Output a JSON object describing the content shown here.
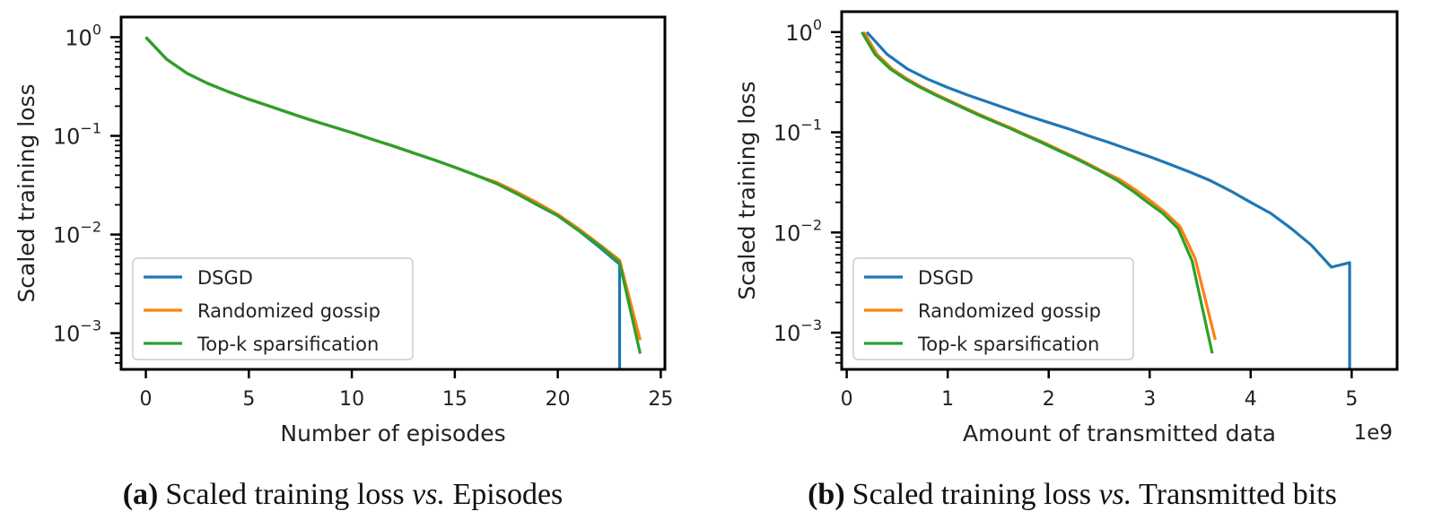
{
  "colors": {
    "dsgd": "#1f77b4",
    "randomized_gossip": "#ff7f0e",
    "topk": "#2ca02c"
  },
  "chart_data": [
    {
      "id": "a",
      "type": "line",
      "yscale": "log",
      "title": "",
      "xlabel": "Number of episodes",
      "ylabel": "Scaled training loss",
      "xlim": [
        -1.2,
        25.2
      ],
      "ylim": [
        0.00043,
        1.6
      ],
      "xticks": [
        0,
        5,
        10,
        15,
        20,
        25
      ],
      "xtick_labels": [
        "0",
        "5",
        "10",
        "15",
        "20",
        "25"
      ],
      "yticks": [
        1,
        0.1,
        0.01,
        0.001
      ],
      "ytick_labels": [
        {
          "base": "10",
          "exp": "0"
        },
        {
          "base": "10",
          "exp": "−1"
        },
        {
          "base": "10",
          "exp": "−2"
        },
        {
          "base": "10",
          "exp": "−3"
        }
      ],
      "legend": {
        "placement": "lower-left",
        "entries": [
          "DSGD",
          "Randomized gossip",
          "Top-k sparsification"
        ]
      },
      "caption": {
        "label": "(a)",
        "text_1": "Scaled training loss ",
        "vs": "vs.",
        "text_2": " Episodes"
      },
      "series": [
        {
          "name": "DSGD",
          "color_key": "dsgd",
          "x": [
            0,
            1,
            2,
            3,
            4,
            5,
            6,
            7,
            8,
            9,
            10,
            11,
            12,
            13,
            14,
            15,
            16,
            17,
            18,
            19,
            20,
            21,
            22,
            23,
            23
          ],
          "y": [
            1.0,
            0.6,
            0.43,
            0.34,
            0.28,
            0.235,
            0.2,
            0.17,
            0.145,
            0.125,
            0.108,
            0.092,
            0.079,
            0.067,
            0.057,
            0.048,
            0.04,
            0.033,
            0.026,
            0.02,
            0.0155,
            0.011,
            0.0075,
            0.005,
            0.0003
          ]
        },
        {
          "name": "Randomized gossip",
          "color_key": "randomized_gossip",
          "x": [
            0,
            1,
            2,
            3,
            4,
            5,
            6,
            7,
            8,
            9,
            10,
            11,
            12,
            13,
            14,
            15,
            16,
            17,
            18,
            19,
            20,
            21,
            22,
            23,
            24
          ],
          "y": [
            1.0,
            0.6,
            0.43,
            0.34,
            0.28,
            0.235,
            0.2,
            0.17,
            0.145,
            0.125,
            0.108,
            0.092,
            0.079,
            0.067,
            0.057,
            0.048,
            0.04,
            0.034,
            0.027,
            0.021,
            0.016,
            0.0115,
            0.008,
            0.0055,
            0.00085
          ]
        },
        {
          "name": "Top-k sparsification",
          "color_key": "topk",
          "x": [
            0,
            1,
            2,
            3,
            4,
            5,
            6,
            7,
            8,
            9,
            10,
            11,
            12,
            13,
            14,
            15,
            16,
            17,
            18,
            19,
            20,
            21,
            22,
            23,
            24
          ],
          "y": [
            1.0,
            0.6,
            0.43,
            0.34,
            0.28,
            0.235,
            0.2,
            0.17,
            0.145,
            0.125,
            0.108,
            0.092,
            0.079,
            0.067,
            0.057,
            0.048,
            0.04,
            0.033,
            0.026,
            0.02,
            0.0155,
            0.011,
            0.0078,
            0.0052,
            0.00062
          ]
        }
      ]
    },
    {
      "id": "b",
      "type": "line",
      "yscale": "log",
      "title": "",
      "xlabel": "Amount of transmitted data",
      "ylabel": "Scaled training loss",
      "offset_text": "1e9",
      "xlim": [
        -0.05,
        5.45
      ],
      "ylim": [
        0.00043,
        1.6
      ],
      "xticks": [
        0,
        1,
        2,
        3,
        4,
        5
      ],
      "xtick_labels": [
        "0",
        "1",
        "2",
        "3",
        "4",
        "5"
      ],
      "yticks": [
        1,
        0.1,
        0.01,
        0.001
      ],
      "ytick_labels": [
        {
          "base": "10",
          "exp": "0"
        },
        {
          "base": "10",
          "exp": "−1"
        },
        {
          "base": "10",
          "exp": "−2"
        },
        {
          "base": "10",
          "exp": "−3"
        }
      ],
      "legend": {
        "placement": "lower-left",
        "entries": [
          "DSGD",
          "Randomized gossip",
          "Top-k sparsification"
        ]
      },
      "caption": {
        "label": "(b)",
        "text_1": "Scaled training loss ",
        "vs": "vs.",
        "text_2": " Transmitted bits"
      },
      "series": [
        {
          "name": "DSGD",
          "color_key": "dsgd",
          "x": [
            0.2,
            0.4,
            0.6,
            0.8,
            1.0,
            1.2,
            1.4,
            1.6,
            1.8,
            2.0,
            2.2,
            2.4,
            2.6,
            2.8,
            3.0,
            3.2,
            3.4,
            3.6,
            3.8,
            4.0,
            4.2,
            4.4,
            4.6,
            4.8,
            4.98,
            4.98
          ],
          "y": [
            1.0,
            0.6,
            0.43,
            0.34,
            0.28,
            0.235,
            0.2,
            0.17,
            0.145,
            0.125,
            0.108,
            0.092,
            0.079,
            0.067,
            0.057,
            0.048,
            0.04,
            0.033,
            0.026,
            0.02,
            0.0155,
            0.011,
            0.0075,
            0.0045,
            0.005,
            0.0003
          ]
        },
        {
          "name": "Randomized gossip",
          "color_key": "randomized_gossip",
          "x": [
            0.17,
            0.3,
            0.45,
            0.6,
            0.75,
            0.9,
            1.05,
            1.2,
            1.35,
            1.5,
            1.65,
            1.8,
            1.95,
            2.1,
            2.25,
            2.4,
            2.55,
            2.7,
            2.85,
            3.0,
            3.15,
            3.3,
            3.45,
            3.65
          ],
          "y": [
            1.0,
            0.6,
            0.43,
            0.34,
            0.28,
            0.235,
            0.2,
            0.17,
            0.145,
            0.125,
            0.108,
            0.092,
            0.079,
            0.067,
            0.057,
            0.048,
            0.04,
            0.034,
            0.027,
            0.021,
            0.016,
            0.0115,
            0.0055,
            0.00085
          ]
        },
        {
          "name": "Top-k sparsification",
          "color_key": "topk",
          "x": [
            0.15,
            0.28,
            0.43,
            0.58,
            0.73,
            0.88,
            1.03,
            1.18,
            1.33,
            1.48,
            1.63,
            1.78,
            1.93,
            2.08,
            2.23,
            2.38,
            2.53,
            2.68,
            2.83,
            2.98,
            3.13,
            3.28,
            3.42,
            3.62
          ],
          "y": [
            1.0,
            0.6,
            0.43,
            0.34,
            0.28,
            0.235,
            0.2,
            0.17,
            0.145,
            0.125,
            0.108,
            0.092,
            0.079,
            0.067,
            0.057,
            0.048,
            0.04,
            0.033,
            0.026,
            0.02,
            0.0155,
            0.011,
            0.0052,
            0.00062
          ]
        }
      ]
    }
  ]
}
